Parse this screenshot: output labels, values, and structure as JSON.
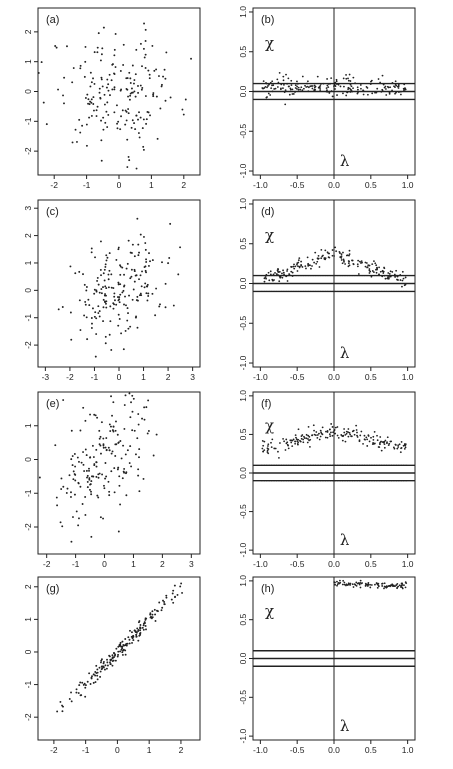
{
  "chart_data": [
    {
      "panel": "(a)",
      "type": "scatter",
      "xlim": [
        -2.5,
        2.5
      ],
      "ylim": [
        -2.8,
        2.8
      ],
      "xticks": [
        "-2",
        "-1",
        "0",
        "1",
        "2"
      ],
      "yticks": [
        "-2",
        "-1",
        "0",
        "1",
        "2"
      ],
      "correlation": 0.0,
      "n_points": 200
    },
    {
      "panel": "(b)",
      "type": "scatter",
      "xlim": [
        -1.1,
        1.1
      ],
      "ylim": [
        -1.05,
        1.05
      ],
      "xticks": [
        "-1.0",
        "-0.5",
        "0.0",
        "0.5",
        "1.0"
      ],
      "yticks": [
        "-1.0",
        "-0.5",
        "0.0",
        "0.5",
        "1.0"
      ],
      "xlabel": "λ",
      "ylabel": "χ",
      "reference_lines": [
        -0.1,
        0.0,
        0.1
      ],
      "chi_profile": {
        "center": 0.05,
        "spread": 0.06
      },
      "n_points": 200
    },
    {
      "panel": "(c)",
      "type": "scatter",
      "xlim": [
        -3.3,
        3.3
      ],
      "ylim": [
        -2.8,
        3.3
      ],
      "xticks": [
        "-3",
        "-2",
        "-1",
        "0",
        "1",
        "2",
        "3"
      ],
      "yticks": [
        "-2",
        "-1",
        "0",
        "1",
        "2",
        "3"
      ],
      "correlation": 0.3,
      "n_points": 200
    },
    {
      "panel": "(d)",
      "type": "scatter",
      "xlim": [
        -1.1,
        1.1
      ],
      "ylim": [
        -1.05,
        1.05
      ],
      "xticks": [
        "-1.0",
        "-0.5",
        "0.0",
        "0.5",
        "1.0"
      ],
      "yticks": [
        "-1.0",
        "-0.5",
        "0.0",
        "0.5",
        "1.0"
      ],
      "xlabel": "λ",
      "ylabel": "χ",
      "reference_lines": [
        -0.1,
        0.0,
        0.1
      ],
      "chi_profile": {
        "peak": 0.38,
        "edge": 0.05,
        "spread": 0.05
      },
      "n_points": 200
    },
    {
      "panel": "(e)",
      "type": "scatter",
      "xlim": [
        -2.3,
        3.3
      ],
      "ylim": [
        -2.8,
        2.0
      ],
      "xticks": [
        "-2",
        "-1",
        "0",
        "1",
        "2",
        "3"
      ],
      "yticks": [
        "-2",
        "-1",
        "0",
        "1"
      ],
      "correlation": 0.55,
      "n_points": 200
    },
    {
      "panel": "(f)",
      "type": "scatter",
      "xlim": [
        -1.1,
        1.1
      ],
      "ylim": [
        -1.05,
        1.05
      ],
      "xticks": [
        "-1.0",
        "-0.5",
        "0.0",
        "0.5",
        "1.0"
      ],
      "yticks": [
        "-1.0",
        "-0.5",
        "0.0",
        "0.5",
        "1.0"
      ],
      "xlabel": "λ",
      "ylabel": "χ",
      "reference_lines": [
        -0.1,
        0.0,
        0.1
      ],
      "chi_profile": {
        "peak": 0.55,
        "edge": 0.32,
        "spread": 0.05
      },
      "n_points": 200
    },
    {
      "panel": "(g)",
      "type": "scatter",
      "xlim": [
        -2.5,
        2.6
      ],
      "ylim": [
        -2.7,
        2.3
      ],
      "xticks": [
        "-2",
        "-1",
        "0",
        "1",
        "2"
      ],
      "yticks": [
        "-2",
        "-1",
        "0",
        "1",
        "2"
      ],
      "correlation": 0.99,
      "n_points": 200
    },
    {
      "panel": "(h)",
      "type": "scatter",
      "xlim": [
        -1.1,
        1.1
      ],
      "ylim": [
        -1.05,
        1.05
      ],
      "xticks": [
        "-1.0",
        "-0.5",
        "0.0",
        "0.5",
        "1.0"
      ],
      "yticks": [
        "-1.0",
        "-0.5",
        "0.0",
        "0.5",
        "1.0"
      ],
      "xlabel": "λ",
      "ylabel": "χ",
      "reference_lines": [
        -0.1,
        0.0,
        0.1
      ],
      "chi_profile": {
        "peak": 0.97,
        "edge": 0.93,
        "spread": 0.02,
        "lambda_min": 0.0
      },
      "n_points": 100
    }
  ]
}
